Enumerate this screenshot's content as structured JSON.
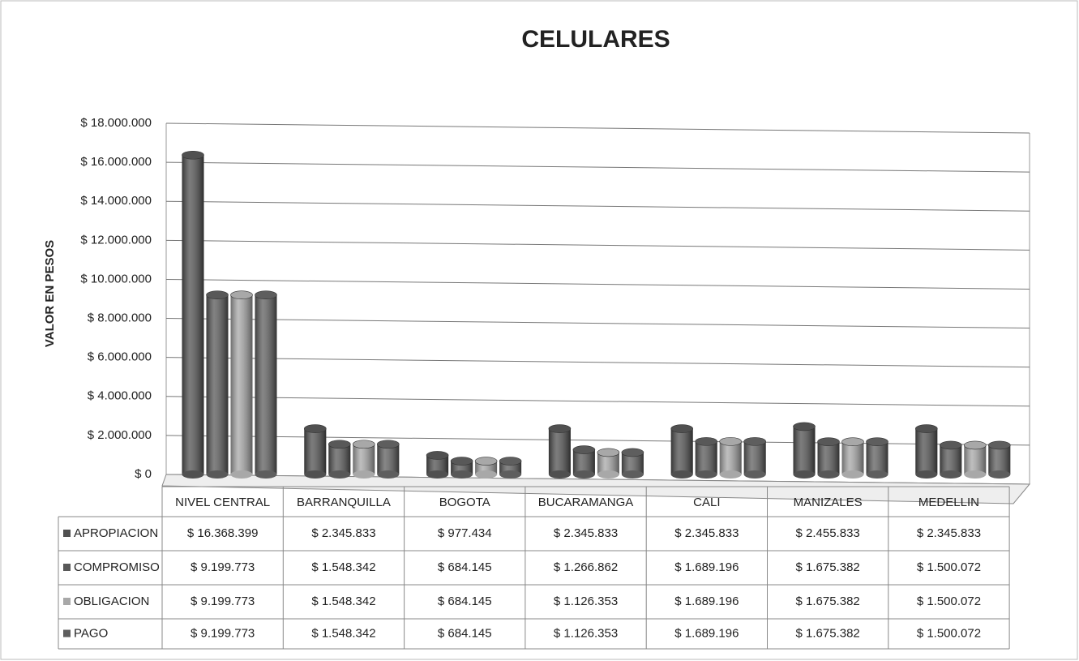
{
  "chart_data": {
    "type": "bar",
    "title": "CELULARES",
    "y_label": "VALOR EN PESOS",
    "categories": [
      "NIVEL CENTRAL",
      "BARRANQUILLA",
      "BOGOTA",
      "BUCARAMANGA",
      "CALI",
      "MANIZALES",
      "MEDELLIN"
    ],
    "series": [
      {
        "name": "APROPIACION",
        "color": "#505050",
        "values": [
          16368399,
          2345833,
          977434,
          2345833,
          2345833,
          2455833,
          2345833
        ],
        "value_labels": [
          "$ 16.368.399",
          "$ 2.345.833",
          "$ 977.434",
          "$ 2.345.833",
          "$ 2.345.833",
          "$ 2.455.833",
          "$ 2.345.833"
        ]
      },
      {
        "name": "COMPROMISO",
        "color": "#585858",
        "values": [
          9199773,
          1548342,
          684145,
          1266862,
          1689196,
          1675382,
          1500072
        ],
        "value_labels": [
          "$ 9.199.773",
          "$ 1.548.342",
          "$ 684.145",
          "$ 1.266.862",
          "$ 1.689.196",
          "$ 1.675.382",
          "$ 1.500.072"
        ]
      },
      {
        "name": "OBLIGACION",
        "color": "#a8a8a8",
        "values": [
          9199773,
          1548342,
          684145,
          1126353,
          1689196,
          1675382,
          1500072
        ],
        "value_labels": [
          "$ 9.199.773",
          "$ 1.548.342",
          "$ 684.145",
          "$ 1.126.353",
          "$ 1.689.196",
          "$ 1.675.382",
          "$ 1.500.072"
        ]
      },
      {
        "name": "PAGO",
        "color": "#5e5e5e",
        "values": [
          9199773,
          1548342,
          684145,
          1126353,
          1689196,
          1675382,
          1500072
        ],
        "value_labels": [
          "$ 9.199.773",
          "$ 1.548.342",
          "$ 684.145",
          "$ 1.126.353",
          "$ 1.689.196",
          "$ 1.675.382",
          "$ 1.500.072"
        ]
      }
    ],
    "ylim": [
      0,
      18000000
    ],
    "yticks": [
      {
        "value": 0,
        "label": "$ 0"
      },
      {
        "value": 2000000,
        "label": "$ 2.000.000"
      },
      {
        "value": 4000000,
        "label": "$ 4.000.000"
      },
      {
        "value": 6000000,
        "label": "$ 6.000.000"
      },
      {
        "value": 8000000,
        "label": "$ 8.000.000"
      },
      {
        "value": 10000000,
        "label": "$ 10.000.000"
      },
      {
        "value": 12000000,
        "label": "$ 12.000.000"
      },
      {
        "value": 14000000,
        "label": "$ 14.000.000"
      },
      {
        "value": 16000000,
        "label": "$ 16.000.000"
      },
      {
        "value": 18000000,
        "label": "$ 18.000.000"
      }
    ],
    "grid": true
  }
}
